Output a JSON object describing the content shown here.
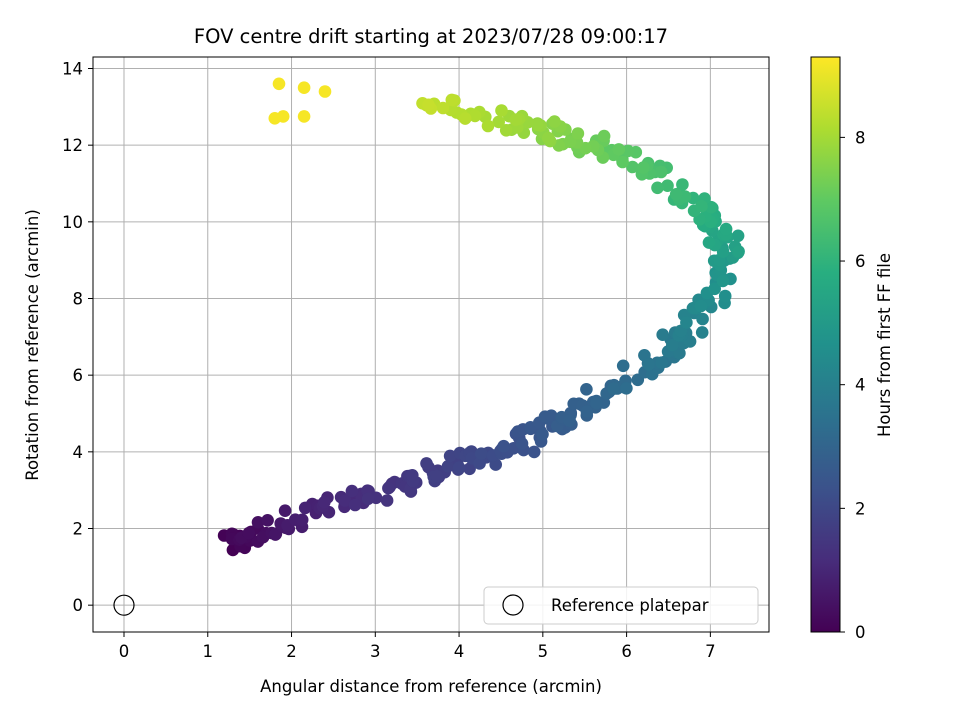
{
  "chart_data": {
    "type": "scatter",
    "title": "FOV centre drift starting at 2023/07/28 09:00:17",
    "xlabel": "Angular distance from reference (arcmin)",
    "ylabel": "Rotation from reference (arcmin)",
    "xlim": [
      -0.37,
      7.7
    ],
    "ylim": [
      -0.7,
      14.3
    ],
    "xticks": [
      "0",
      "1",
      "2",
      "3",
      "4",
      "5",
      "6",
      "7"
    ],
    "yticks": [
      "0",
      "2",
      "4",
      "6",
      "8",
      "10",
      "12",
      "14"
    ],
    "grid": true,
    "colormap": "viridis",
    "colorbar": {
      "label": "Hours from first FF file",
      "range": [
        0,
        9.3
      ],
      "ticks": [
        "0",
        "2",
        "4",
        "6",
        "8"
      ]
    },
    "legend": {
      "position": "lower-right",
      "entries": [
        "Reference platepar"
      ]
    },
    "reference_point": {
      "x": 0,
      "y": 0,
      "label": "Reference platepar"
    },
    "anchors": [
      {
        "x": 1.25,
        "y": 1.55,
        "t": 0.0
      },
      {
        "x": 1.55,
        "y": 1.9,
        "t": 0.35
      },
      {
        "x": 2.3,
        "y": 2.5,
        "t": 0.9
      },
      {
        "x": 3.0,
        "y": 2.8,
        "t": 1.3
      },
      {
        "x": 3.6,
        "y": 3.4,
        "t": 1.6
      },
      {
        "x": 4.2,
        "y": 3.8,
        "t": 2.0
      },
      {
        "x": 4.8,
        "y": 4.3,
        "t": 2.4
      },
      {
        "x": 5.2,
        "y": 4.8,
        "t": 2.7
      },
      {
        "x": 5.7,
        "y": 5.4,
        "t": 3.0
      },
      {
        "x": 6.3,
        "y": 6.3,
        "t": 3.5
      },
      {
        "x": 6.75,
        "y": 7.2,
        "t": 4.0
      },
      {
        "x": 7.1,
        "y": 8.3,
        "t": 4.6
      },
      {
        "x": 7.2,
        "y": 9.4,
        "t": 5.3
      },
      {
        "x": 6.9,
        "y": 10.3,
        "t": 5.9
      },
      {
        "x": 6.4,
        "y": 11.3,
        "t": 6.5
      },
      {
        "x": 5.7,
        "y": 11.9,
        "t": 7.1
      },
      {
        "x": 5.1,
        "y": 12.3,
        "t": 7.6
      },
      {
        "x": 4.5,
        "y": 12.6,
        "t": 8.0
      },
      {
        "x": 3.5,
        "y": 13.2,
        "t": 8.5
      }
    ],
    "late_cluster": [
      {
        "x": 1.85,
        "y": 13.6,
        "t": 9.2
      },
      {
        "x": 2.15,
        "y": 13.5,
        "t": 9.2
      },
      {
        "x": 2.4,
        "y": 13.4,
        "t": 9.2
      },
      {
        "x": 1.8,
        "y": 12.7,
        "t": 9.2
      },
      {
        "x": 1.9,
        "y": 12.75,
        "t": 9.2
      },
      {
        "x": 2.15,
        "y": 12.75,
        "t": 9.2
      }
    ],
    "n_points": 330
  }
}
